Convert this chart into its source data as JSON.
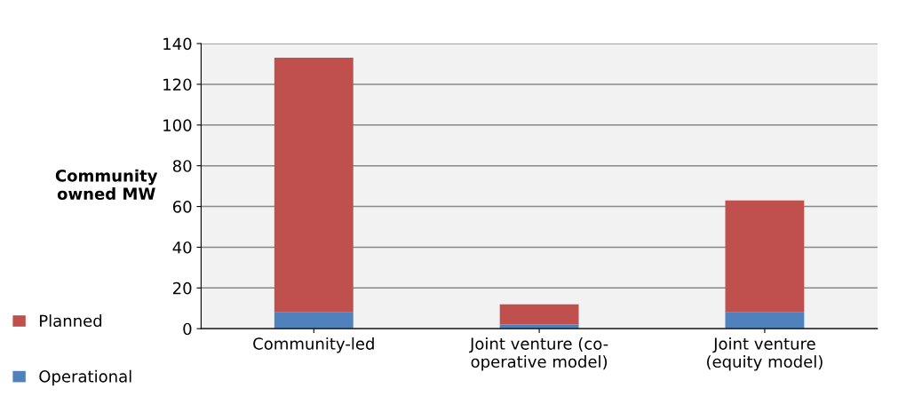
{
  "chart_data": {
    "type": "bar",
    "stacked": true,
    "ylabel": "Community\nowned MW",
    "categories": [
      "Community-led",
      "Joint venture (co-\noperative model)",
      "Joint venture\n(equity model)"
    ],
    "series": [
      {
        "name": "Operational",
        "color": "#4f81bd",
        "values": [
          8,
          2,
          8
        ]
      },
      {
        "name": "Planned",
        "color": "#c0504d",
        "values": [
          125,
          10,
          55
        ]
      }
    ],
    "ylim": [
      0,
      140
    ],
    "yticks": [
      0,
      20,
      40,
      60,
      80,
      100,
      120,
      140
    ],
    "grid": "y",
    "legend": "left"
  }
}
